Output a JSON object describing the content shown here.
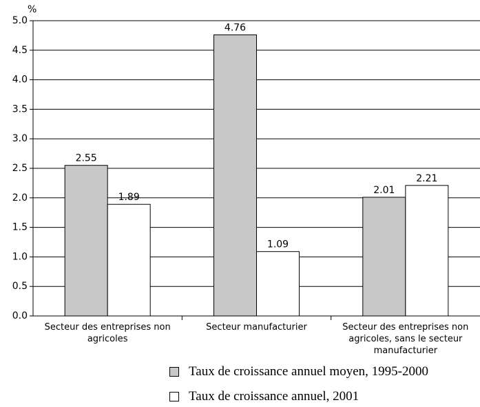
{
  "chart_data": {
    "type": "bar",
    "y_label": "%",
    "categories": [
      "Secteur des entreprises non agricoles",
      "Secteur manufacturier",
      "Secteur des entreprises non agricoles, sans le secteur manufacturier"
    ],
    "series": [
      {
        "name": "Taux de croissance annuel moyen, 1995-2000",
        "color": "#c8c8c8",
        "values": [
          2.55,
          4.76,
          2.01
        ]
      },
      {
        "name": "Taux de croissance annuel, 2001",
        "color": "#ffffff",
        "values": [
          1.89,
          1.09,
          2.21
        ]
      }
    ],
    "ylim": [
      0,
      5
    ],
    "yticks": [
      {
        "value": 0,
        "label": "0.0"
      },
      {
        "value": 0.5,
        "label": "0.5"
      },
      {
        "value": 1,
        "label": "1.0"
      },
      {
        "value": 1.5,
        "label": "1.5"
      },
      {
        "value": 2,
        "label": "2.0"
      },
      {
        "value": 2.5,
        "label": "2.5"
      },
      {
        "value": 3,
        "label": "3.0"
      },
      {
        "value": 3.5,
        "label": "3.5"
      },
      {
        "value": 4,
        "label": "4.0"
      },
      {
        "value": 4.5,
        "label": "4.5"
      },
      {
        "value": 5,
        "label": "5.0"
      }
    ],
    "grid": true
  }
}
